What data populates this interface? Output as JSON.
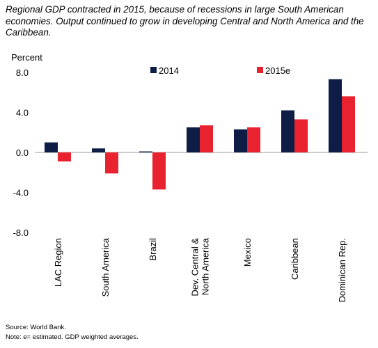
{
  "subtitle": "Regional GDP contracted in 2015, because of recessions in large South American economies. Output continued to grow in developing Central and North America and the Caribbean.",
  "source": "Source: World Bank.",
  "note": "Note: e= estimated. GDP weighted averages.",
  "chart_data": {
    "type": "bar",
    "ylabel": "Percent",
    "ylim": [
      -8,
      8
    ],
    "yticks": [
      "8.0",
      "4.0",
      "0.0",
      "-4.0",
      "-8.0"
    ],
    "categories": [
      "LAC Region",
      "South America",
      "Brazil",
      "Dev. Central & North America",
      "Mexico",
      "Caribbean",
      "Dominican Rep."
    ],
    "category_lines": [
      [
        "LAC Region"
      ],
      [
        "South America"
      ],
      [
        "Brazil"
      ],
      [
        "Dev. Central &",
        "North America"
      ],
      [
        "Mexico"
      ],
      [
        "Caribbean"
      ],
      [
        "Dominican Rep."
      ]
    ],
    "series": [
      {
        "name": "2014",
        "color": "#0d1d45",
        "values": [
          1.0,
          0.4,
          0.1,
          2.5,
          2.3,
          4.2,
          7.3
        ]
      },
      {
        "name": "2015e",
        "color": "#e8222e",
        "values": [
          -0.9,
          -2.1,
          -3.7,
          2.7,
          2.5,
          3.3,
          5.6
        ]
      }
    ],
    "legend": "top"
  }
}
